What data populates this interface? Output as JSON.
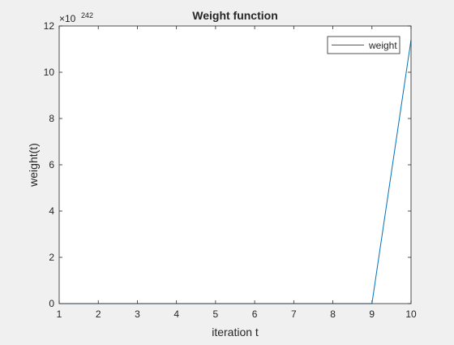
{
  "chart_data": {
    "type": "line",
    "title": "Weight function",
    "xlabel": "iteration t",
    "ylabel": "weight(t)",
    "exponent_label": {
      "base": "×10",
      "power": "242"
    },
    "xlim": [
      1,
      10
    ],
    "ylim": [
      0,
      12
    ],
    "xticks": [
      "1",
      "2",
      "3",
      "4",
      "5",
      "6",
      "7",
      "8",
      "9",
      "10"
    ],
    "yticks": [
      "0",
      "2",
      "4",
      "6",
      "8",
      "10",
      "12"
    ],
    "grid": false,
    "legend_placement": "top-right",
    "series": [
      {
        "name": "weight",
        "color": "#0072bd",
        "x": [
          1,
          2,
          3,
          4,
          5,
          6,
          7,
          8,
          9,
          10
        ],
        "y": [
          0,
          0,
          0,
          0,
          0,
          0,
          0,
          0,
          0,
          11.4
        ]
      }
    ]
  }
}
